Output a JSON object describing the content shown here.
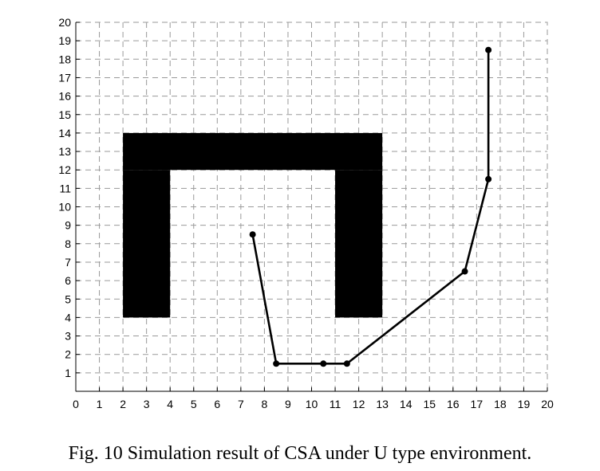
{
  "caption": "Fig. 10 Simulation result of CSA under U type environment.",
  "chart_data": {
    "type": "line",
    "title": "",
    "xlabel": "",
    "ylabel": "",
    "xlim": [
      0,
      20
    ],
    "ylim": [
      0,
      20
    ],
    "xticks": [
      0,
      1,
      2,
      3,
      4,
      5,
      6,
      7,
      8,
      9,
      10,
      11,
      12,
      13,
      14,
      15,
      16,
      17,
      18,
      19,
      20
    ],
    "yticks": [
      1,
      2,
      3,
      4,
      5,
      6,
      7,
      8,
      9,
      10,
      11,
      12,
      13,
      14,
      15,
      16,
      17,
      18,
      19,
      20
    ],
    "grid": true,
    "obstacles": [
      {
        "x": [
          2,
          13
        ],
        "y": [
          12,
          14
        ]
      },
      {
        "x": [
          2,
          4
        ],
        "y": [
          4,
          12
        ]
      },
      {
        "x": [
          11,
          13
        ],
        "y": [
          4,
          12
        ]
      }
    ],
    "series": [
      {
        "x": [
          7.5,
          8.5,
          10.5,
          11.5,
          16.5,
          17.5,
          17.5
        ],
        "y": [
          8.5,
          1.5,
          1.5,
          1.5,
          6.5,
          11.5,
          18.5
        ]
      }
    ],
    "colors": {
      "obstacle": "#000000",
      "path": "#000000",
      "grid": "#9a9a9a"
    }
  }
}
